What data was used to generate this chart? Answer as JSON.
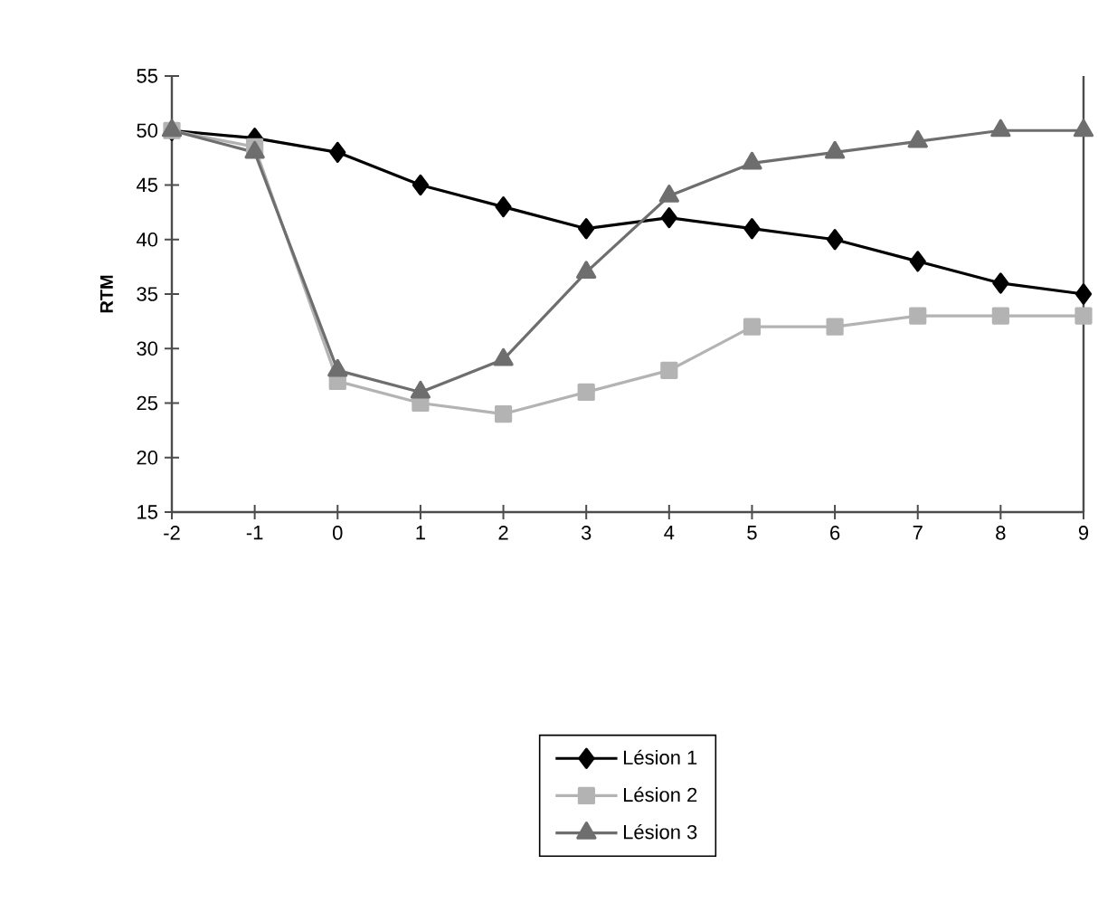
{
  "chart_data": {
    "type": "line",
    "ylabel": "RTM",
    "x": [
      -2,
      -1,
      0,
      1,
      2,
      3,
      4,
      5,
      6,
      7,
      8,
      9
    ],
    "xlim": [
      -2,
      9
    ],
    "xticks": [
      -2,
      -1,
      0,
      1,
      2,
      3,
      4,
      5,
      6,
      7,
      8,
      9
    ],
    "ylim": [
      15,
      55
    ],
    "yticks": [
      15,
      20,
      25,
      30,
      35,
      40,
      45,
      50,
      55
    ],
    "grid": false,
    "legend": "bottom",
    "line_style": "solid",
    "series": [
      {
        "name": "Lésion 1",
        "color": "#000000",
        "marker": "diamond",
        "values": [
          50,
          49.3,
          48,
          45,
          43,
          41,
          42,
          41,
          40,
          38,
          36,
          35
        ]
      },
      {
        "name": "Lésion 2",
        "color": "#b3b3b3",
        "marker": "square",
        "values": [
          50,
          48.5,
          27,
          25,
          24,
          26,
          28,
          32,
          32,
          33,
          33,
          33
        ]
      },
      {
        "name": "Lésion 3",
        "color": "#6e6e6e",
        "marker": "triangle",
        "values": [
          50,
          48,
          28,
          26,
          29,
          37,
          44,
          47,
          48,
          49,
          50,
          50
        ]
      }
    ]
  }
}
